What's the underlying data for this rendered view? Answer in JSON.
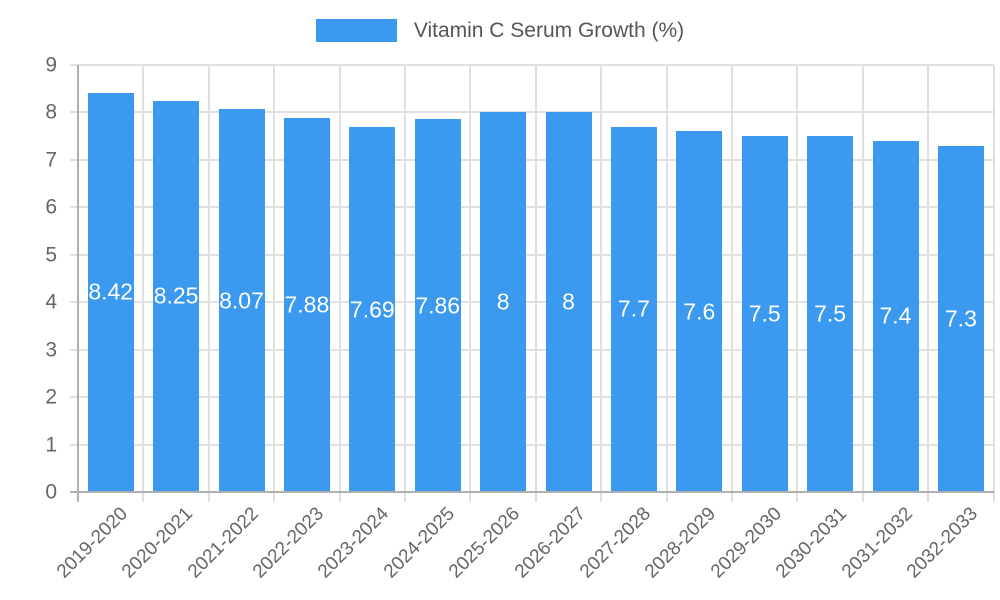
{
  "chart_data": {
    "type": "bar",
    "title": "",
    "legend_label": "Vitamin C Serum Growth (%)",
    "legend_position": "top",
    "xlabel": "",
    "ylabel": "",
    "categories": [
      "2019-2020",
      "2020-2021",
      "2021-2022",
      "2022-2023",
      "2023-2024",
      "2024-2025",
      "2025-2026",
      "2026-2027",
      "2027-2028",
      "2028-2029",
      "2029-2030",
      "2030-2031",
      "2031-2032",
      "2032-2033"
    ],
    "values": [
      8.42,
      8.25,
      8.07,
      7.88,
      7.69,
      7.86,
      8,
      8,
      7.7,
      7.6,
      7.5,
      7.5,
      7.4,
      7.3
    ],
    "value_labels": [
      "8.42",
      "8.25",
      "8.07",
      "7.88",
      "7.69",
      "7.86",
      "8",
      "8",
      "7.7",
      "7.6",
      "7.5",
      "7.5",
      "7.4",
      "7.3"
    ],
    "ylim": [
      0,
      9
    ],
    "y_ticks": [
      "0",
      "1",
      "2",
      "3",
      "4",
      "5",
      "6",
      "7",
      "8",
      "9"
    ],
    "grid": true,
    "colors": {
      "bar": "#3b99f0",
      "grid": "#e0e0e0",
      "axis": "#b0b0b0",
      "tick_text": "#666666",
      "legend_text": "#565656",
      "value_text": "#ffffff",
      "background": "#ffffff"
    }
  }
}
